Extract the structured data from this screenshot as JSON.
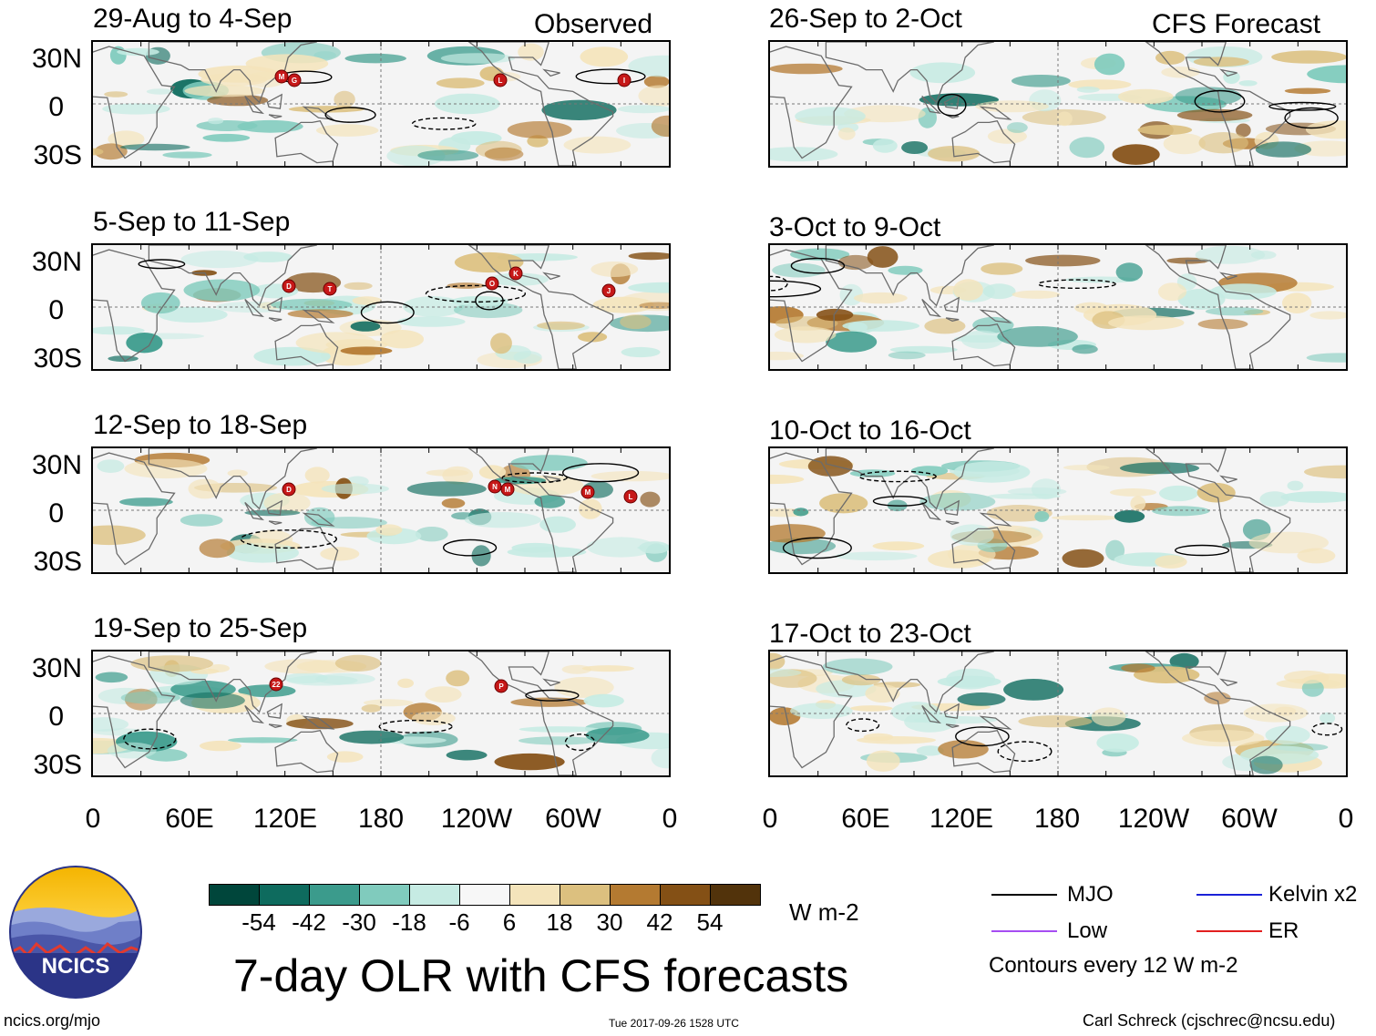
{
  "panels": {
    "observed": [
      {
        "period": "29-Aug to 4-Sep",
        "tag": "Observed"
      },
      {
        "period": "5-Sep to 11-Sep",
        "tag": ""
      },
      {
        "period": "12-Sep to 18-Sep",
        "tag": ""
      },
      {
        "period": "19-Sep to 25-Sep",
        "tag": ""
      }
    ],
    "forecast": [
      {
        "period": "26-Sep to 2-Oct",
        "tag": "CFS Forecast"
      },
      {
        "period": "3-Oct to 9-Oct",
        "tag": ""
      },
      {
        "period": "10-Oct to 16-Oct",
        "tag": ""
      },
      {
        "period": "17-Oct to 23-Oct",
        "tag": ""
      }
    ]
  },
  "lat_labels": [
    "30N",
    "0",
    "30S"
  ],
  "lon_labels": [
    "0",
    "60E",
    "120E",
    "180",
    "120W",
    "60W",
    "0"
  ],
  "storm_markers": {
    "p0": [
      "M",
      "G",
      "L",
      "I"
    ],
    "p1": [
      "D",
      "T",
      "O",
      "K",
      "J"
    ],
    "p2": [
      "D",
      "N",
      "M",
      "M",
      "L"
    ],
    "p3": [
      "22",
      "P"
    ]
  },
  "colorbar": {
    "ticks": [
      "-54",
      "-42",
      "-30",
      "-18",
      "-6",
      "6",
      "18",
      "30",
      "42",
      "54"
    ],
    "colors": [
      "#00463b",
      "#0e6b5e",
      "#3b9b8c",
      "#80cbbd",
      "#c6ebe3",
      "#f7f7f7",
      "#f4e4bb",
      "#dcc07f",
      "#b47a31",
      "#845015",
      "#52330b"
    ],
    "units": "W m-2"
  },
  "legend": {
    "mjo": {
      "label": "MJO",
      "color": "#000000"
    },
    "kelvin": {
      "label": "Kelvin x2",
      "color": "#1a22d8"
    },
    "low": {
      "label": "Low",
      "color": "#a64df2"
    },
    "er": {
      "label": "ER",
      "color": "#e21f1f"
    },
    "contours_note": "Contours every 12 W m-2"
  },
  "logo": {
    "text": "NCICS"
  },
  "main_title": "7-day OLR with CFS forecasts",
  "footer": {
    "url": "ncics.org/mjo",
    "timestamp": "Tue 2017-09-26 1528 UTC",
    "credit": "Carl Schreck (cjschrec@ncsu.edu)"
  }
}
